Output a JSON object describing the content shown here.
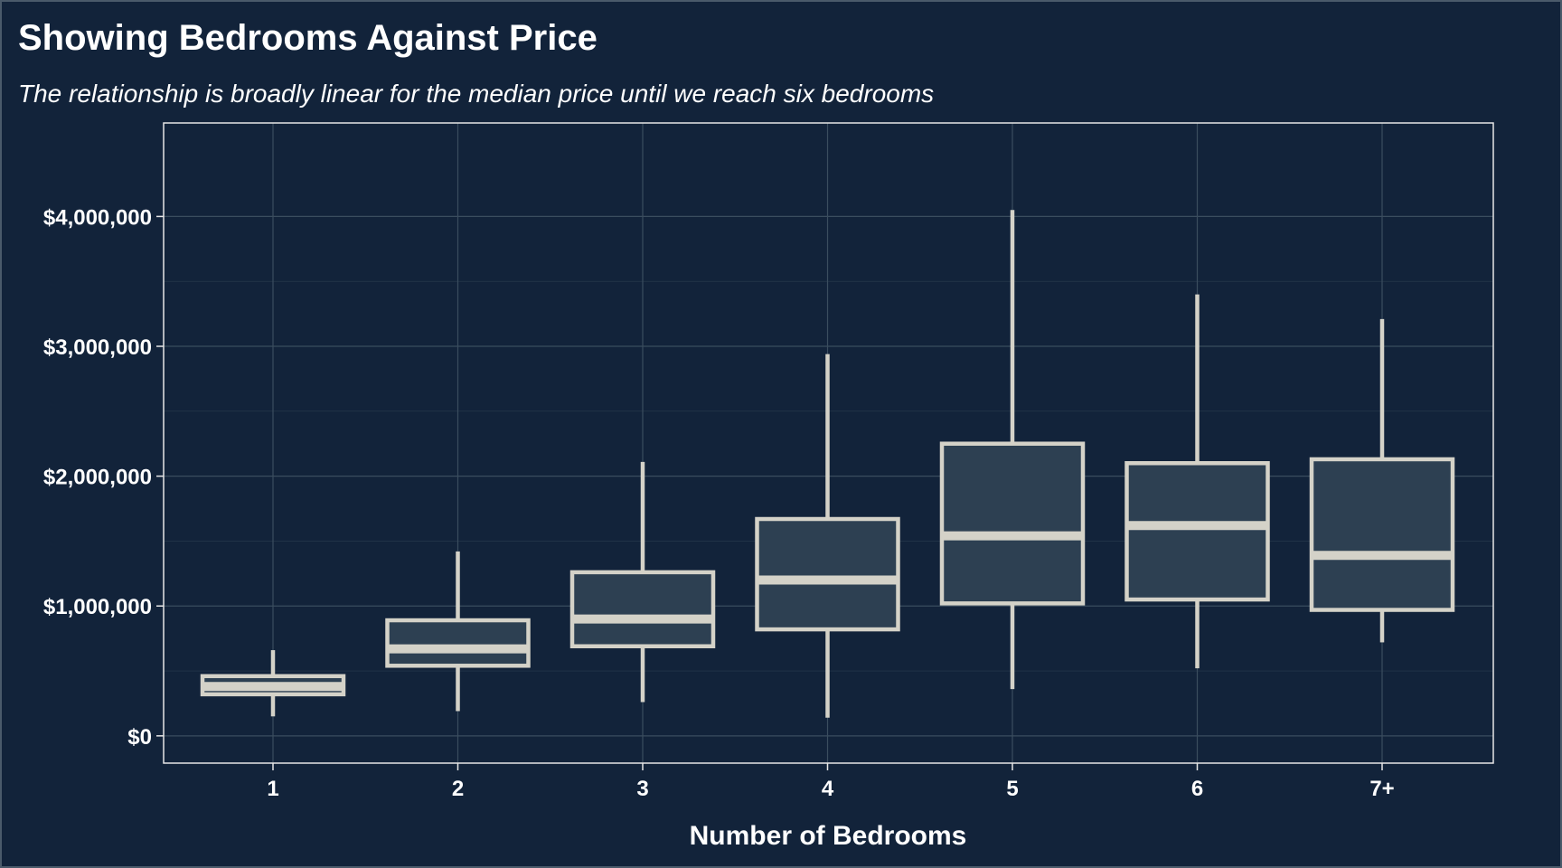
{
  "colors": {
    "background": "#12233a",
    "box_fill": "#2d4052",
    "box_stroke": "#d4d2c8",
    "grid": "#3a4d5e",
    "text": "#ffffff"
  },
  "chart_data": {
    "type": "boxplot",
    "title": "Showing Bedrooms Against Price",
    "subtitle": "The relationship is broadly linear for the median price until we reach six bedrooms",
    "xlabel": "Number of Bedrooms",
    "ylabel": "",
    "ylim": [
      -210000,
      4720000
    ],
    "y_ticks": [
      0,
      1000000,
      2000000,
      3000000,
      4000000
    ],
    "y_tick_labels": [
      "$0",
      "$1,000,000",
      "$2,000,000",
      "$3,000,000",
      "$4,000,000"
    ],
    "grid": true,
    "legend": "none",
    "categories": [
      "1",
      "2",
      "3",
      "4",
      "5",
      "6",
      "7+"
    ],
    "boxes": [
      {
        "category": "1",
        "whisker_low": 150000,
        "q1": 320000,
        "median": 380000,
        "q3": 460000,
        "whisker_high": 660000
      },
      {
        "category": "2",
        "whisker_low": 190000,
        "q1": 540000,
        "median": 670000,
        "q3": 890000,
        "whisker_high": 1420000
      },
      {
        "category": "3",
        "whisker_low": 260000,
        "q1": 690000,
        "median": 900000,
        "q3": 1260000,
        "whisker_high": 2110000
      },
      {
        "category": "4",
        "whisker_low": 140000,
        "q1": 820000,
        "median": 1200000,
        "q3": 1670000,
        "whisker_high": 2940000
      },
      {
        "category": "5",
        "whisker_low": 360000,
        "q1": 1020000,
        "median": 1540000,
        "q3": 2250000,
        "whisker_high": 4050000
      },
      {
        "category": "6",
        "whisker_low": 520000,
        "q1": 1050000,
        "median": 1620000,
        "q3": 2100000,
        "whisker_high": 3400000
      },
      {
        "category": "7+",
        "whisker_low": 720000,
        "q1": 970000,
        "median": 1390000,
        "q3": 2130000,
        "whisker_high": 3210000
      }
    ]
  }
}
